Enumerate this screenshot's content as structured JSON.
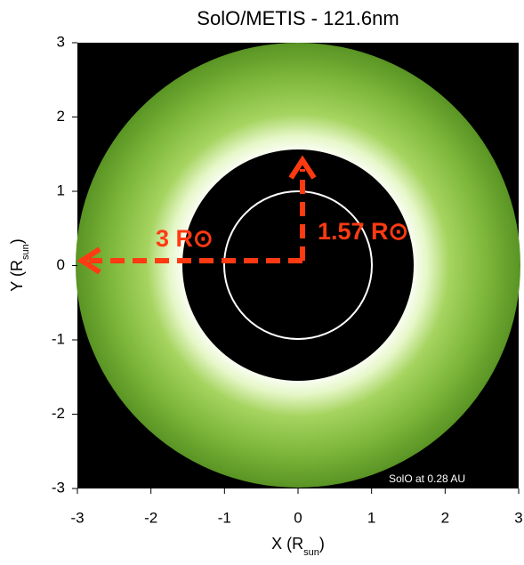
{
  "chart_data": {
    "type": "image",
    "title": "SolO/METIS - 121.6nm",
    "xlabel": [
      "X (R",
      "sun",
      ")"
    ],
    "ylabel": [
      "Y (R",
      "sun",
      ")"
    ],
    "xlim": [
      -3,
      3
    ],
    "ylim": [
      -3,
      3
    ],
    "xticks": [
      -3,
      -2,
      -1,
      0,
      1,
      2,
      3
    ],
    "yticks": [
      -3,
      -2,
      -1,
      0,
      1,
      2,
      3
    ],
    "annotations": [
      "3 R⊙",
      "1.57 R⊙",
      "SolO at 0.28 AU"
    ]
  }
}
